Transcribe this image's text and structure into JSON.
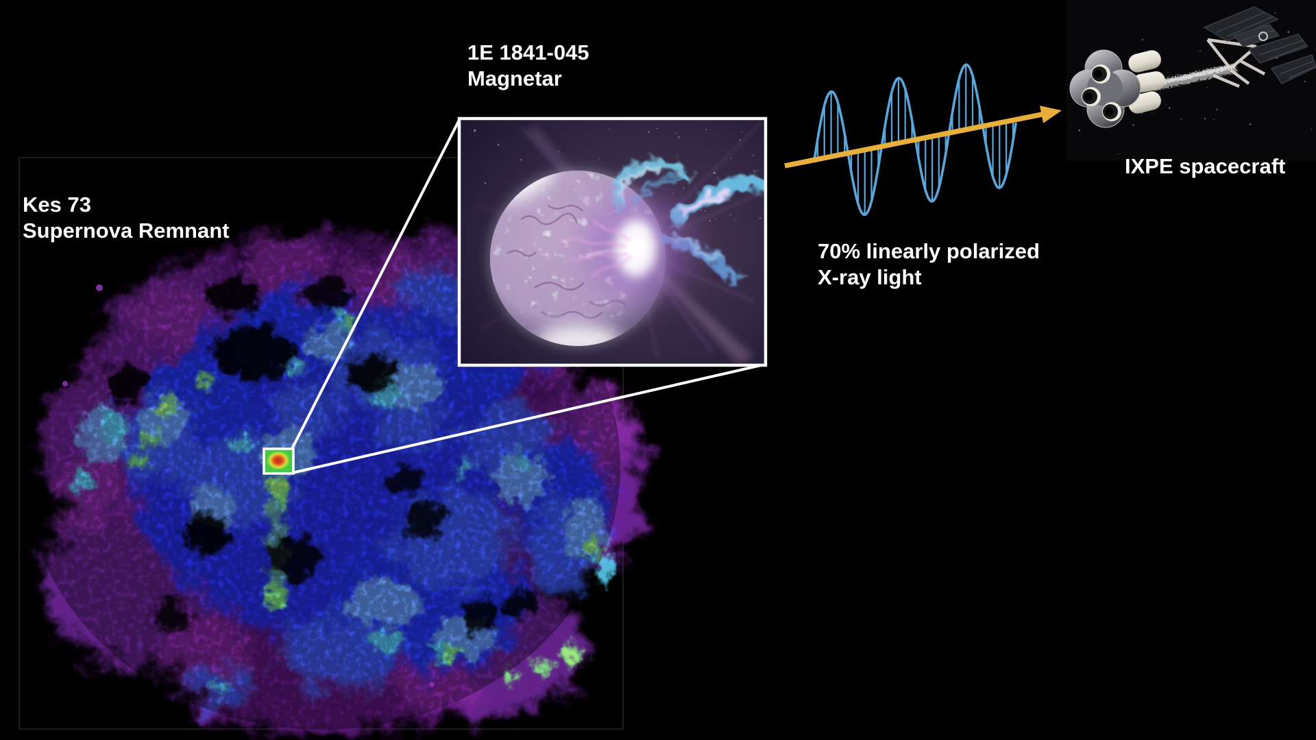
{
  "figure": {
    "remnant": {
      "title_line1": "Kes 73",
      "title_line2": "Supernova Remnant"
    },
    "magnetar": {
      "title_line1": "1E 1841-045",
      "title_line2": "Magnetar"
    },
    "polarization": {
      "line1": "70% linearly polarized",
      "line2": "X-ray light"
    },
    "spacecraft": {
      "label": "IXPE spacecraft"
    }
  },
  "colors": {
    "background": "#000000",
    "wave_blue": "#5BA7DC",
    "arrow_orange": "#E9AF3D",
    "callout_white": "#FFFFFF",
    "remnant_purple": "#7B2F9E",
    "remnant_blue": "#2B36EE",
    "remnant_cyan": "#58CDF2",
    "remnant_green": "#7FE97F",
    "hotspot_red": "#CC2418"
  }
}
